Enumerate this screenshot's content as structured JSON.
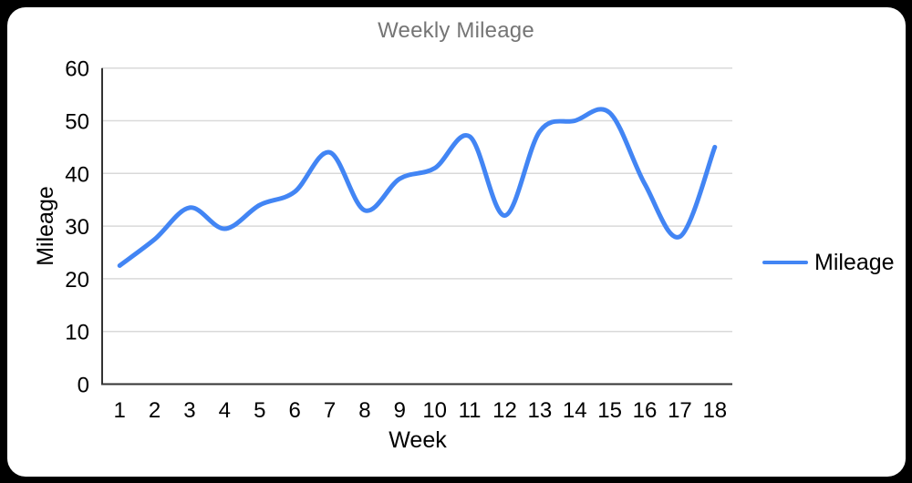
{
  "window": {
    "frame_background": "#000000",
    "card_background": "#ffffff"
  },
  "chart_data": {
    "type": "line",
    "title": "Weekly Mileage",
    "title_color": "#757575",
    "xlabel": "Week",
    "ylabel": "Mileage",
    "x": [
      1,
      2,
      3,
      4,
      5,
      6,
      7,
      8,
      9,
      10,
      11,
      12,
      13,
      14,
      15,
      16,
      17,
      18
    ],
    "series": [
      {
        "name": "Mileage",
        "color": "#4285f4",
        "values": [
          22.5,
          27.5,
          33.5,
          29.5,
          34,
          36.5,
          44,
          33,
          39,
          41,
          47,
          32,
          48,
          50,
          51.5,
          38,
          28,
          45
        ]
      }
    ],
    "ylim": [
      0,
      60
    ],
    "yticks": [
      0,
      10,
      20,
      30,
      40,
      50,
      60
    ],
    "grid": "horizontal-only",
    "gridline_color": "#d9d9d9",
    "axis_color": "#333333",
    "tick_label_color": "#000000",
    "line_smoothing": true,
    "markers": false,
    "legend_position": "right"
  }
}
